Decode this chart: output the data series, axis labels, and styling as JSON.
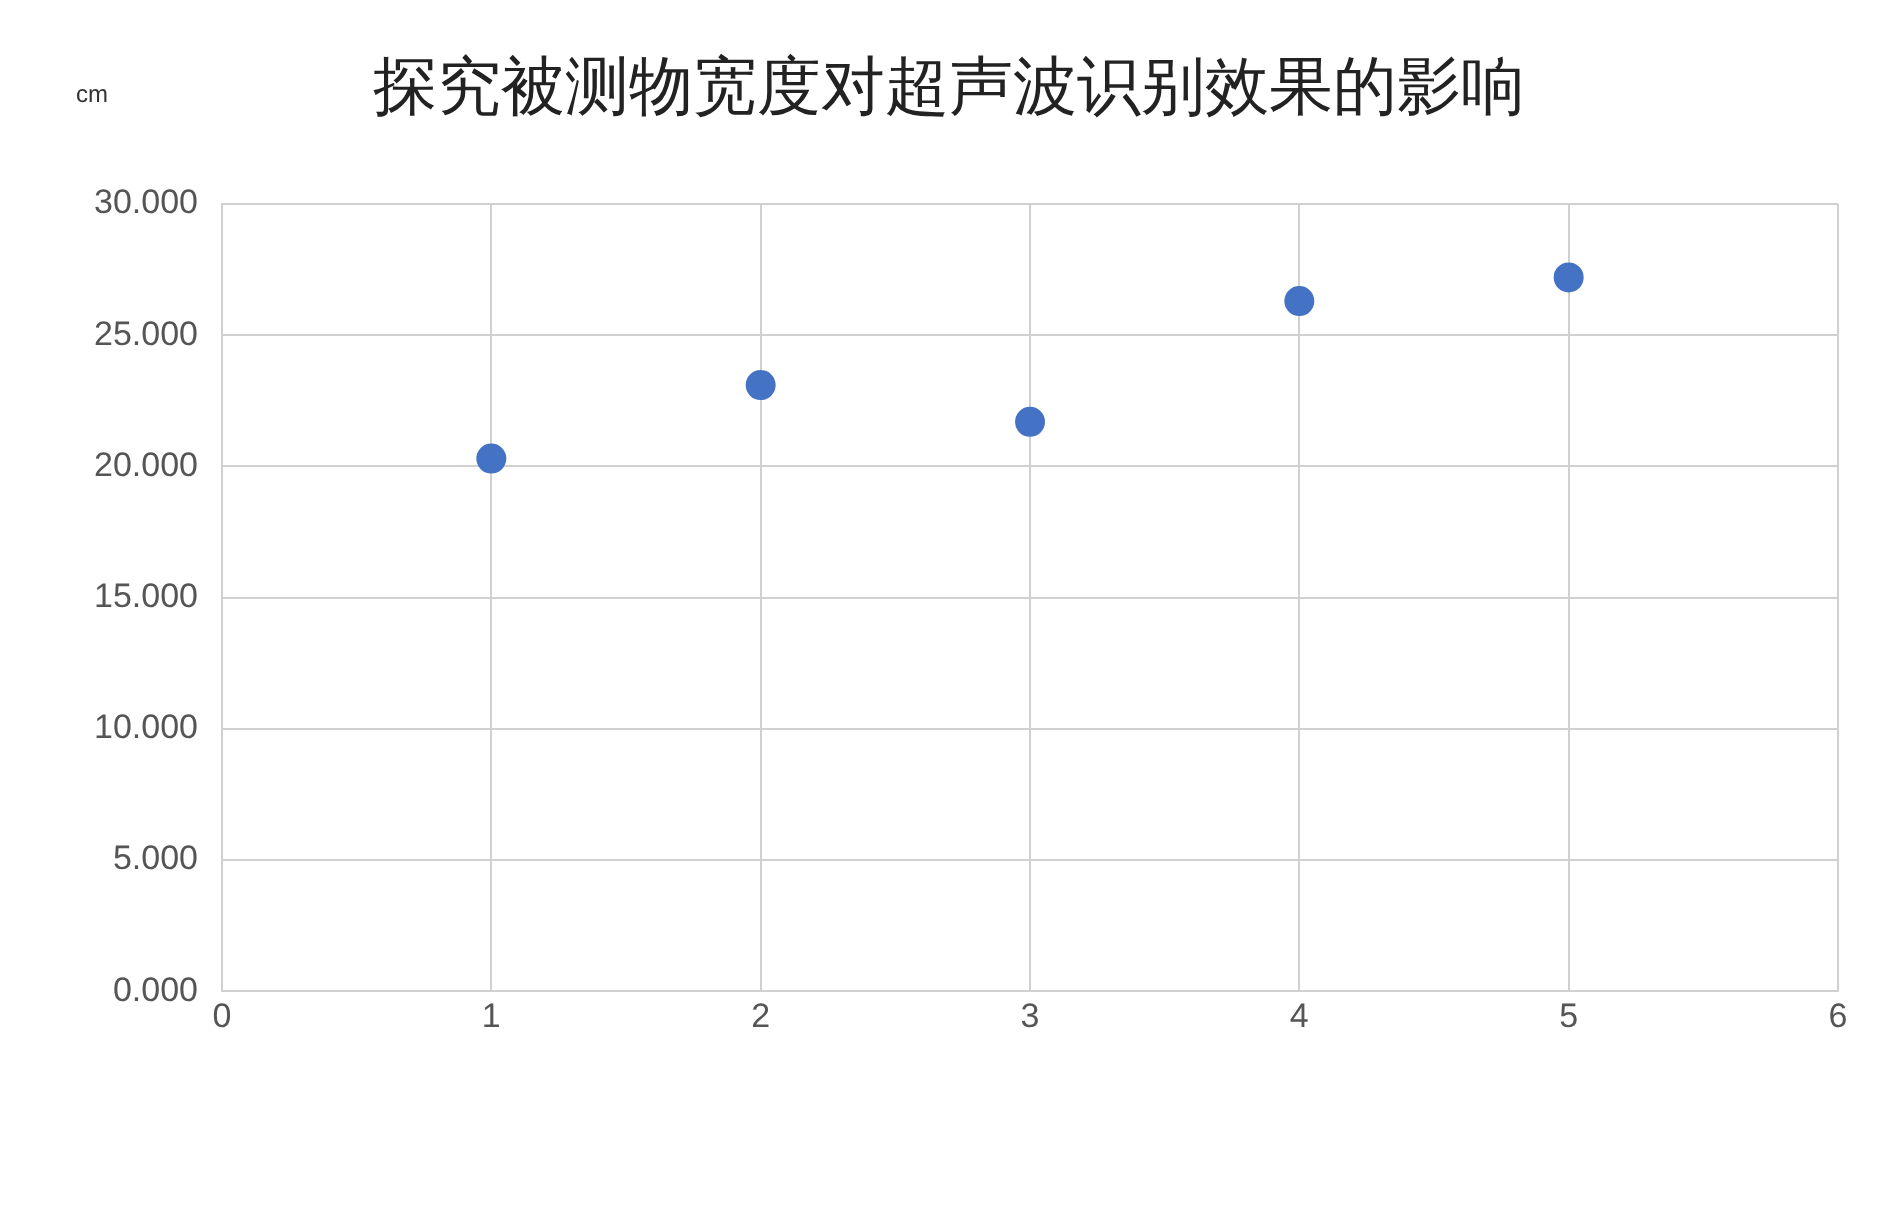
{
  "chart_data": {
    "type": "scatter",
    "title": "探究被测物宽度对超声波识别效果的影响",
    "ylabel": "cm",
    "x": [
      1,
      2,
      3,
      4,
      5
    ],
    "series": [
      {
        "color": "#4472c4",
        "values": [
          20.3,
          23.1,
          21.7,
          26.3,
          27.2
        ]
      }
    ],
    "xlim": [
      0,
      6
    ],
    "xticks": [
      0,
      1,
      2,
      3,
      4,
      5,
      6
    ],
    "ylim": [
      0,
      30
    ],
    "yticks": [
      {
        "value": 0,
        "label": "0.000"
      },
      {
        "value": 5,
        "label": "5.000"
      },
      {
        "value": 10,
        "label": "10.000"
      },
      {
        "value": 15,
        "label": "15.000"
      },
      {
        "value": 20,
        "label": "20.000"
      },
      {
        "value": 25,
        "label": "25.000"
      },
      {
        "value": 30,
        "label": "30.000"
      }
    ],
    "grid": true,
    "marker": "circle",
    "legend": false
  }
}
